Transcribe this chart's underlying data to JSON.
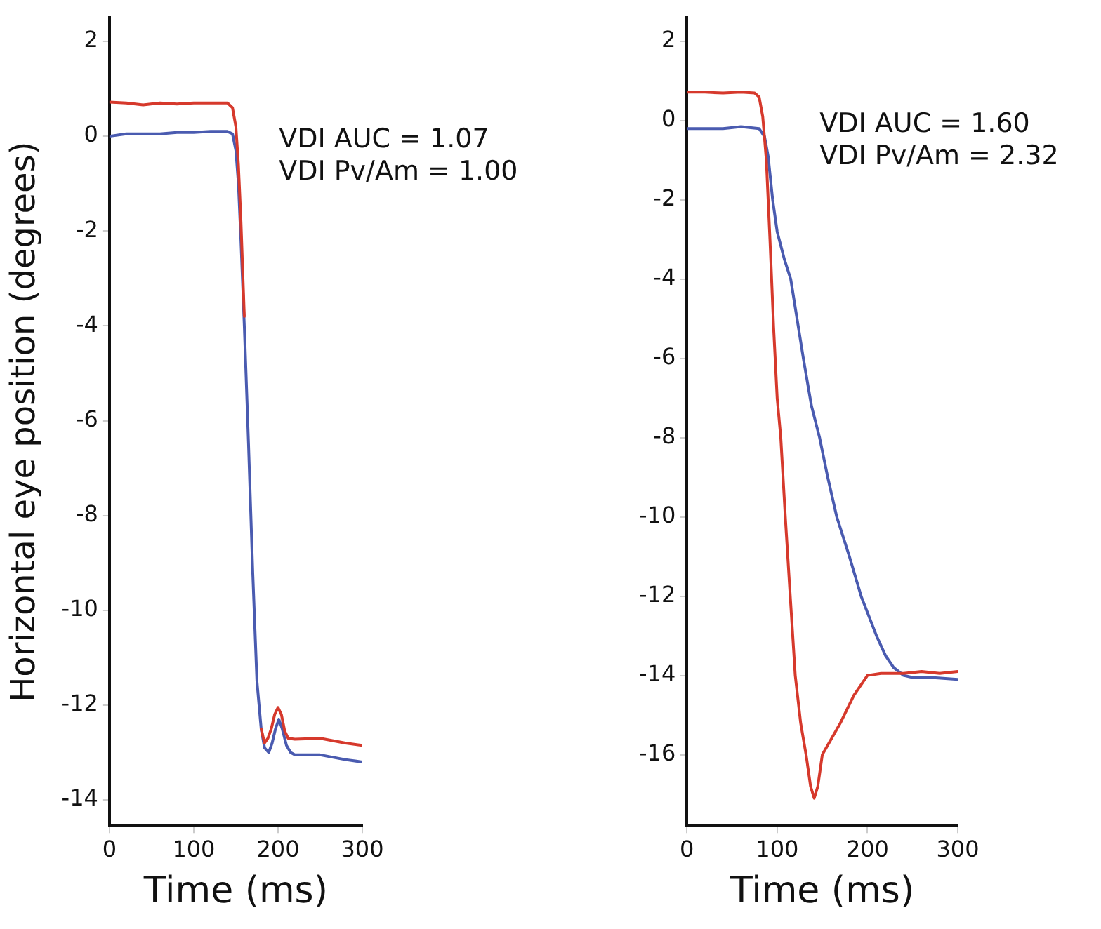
{
  "chart_data": [
    {
      "type": "line",
      "xlabel": "Time (ms)",
      "ylabel": "Horizontal eye position (degrees)",
      "annotations": [
        "VDI AUC = 1.07",
        "VDI Pv/Am = 1.00"
      ],
      "xlim": [
        0,
        300
      ],
      "xticks": [
        0,
        100,
        200,
        300
      ],
      "ylim": [
        -14.55,
        2.5
      ],
      "yticks": [
        2,
        0,
        -2,
        -4,
        -6,
        -8,
        -10,
        -12,
        -14
      ],
      "grid": false,
      "legend": false,
      "marker": "none",
      "line_style": "solid",
      "series": [
        {
          "color": "#d6392c",
          "x": [
            0,
            20,
            40,
            60,
            80,
            100,
            120,
            140,
            146,
            150,
            153,
            156,
            160,
            165,
            170,
            175,
            180,
            184,
            188,
            192,
            196,
            200,
            204,
            208,
            212,
            220,
            250,
            280,
            300
          ],
          "values": [
            0.72,
            0.7,
            0.66,
            0.7,
            0.68,
            0.7,
            0.7,
            0.7,
            0.6,
            0.2,
            -0.6,
            -1.8,
            -3.8,
            null,
            null,
            null,
            -12.5,
            -12.8,
            -12.7,
            -12.5,
            -12.2,
            -12.05,
            -12.2,
            -12.55,
            -12.7,
            -12.72,
            -12.7,
            -12.8,
            -12.85
          ]
        },
        {
          "color": "#4a5bb0",
          "x": [
            0,
            20,
            40,
            60,
            80,
            100,
            120,
            140,
            146,
            150,
            153,
            156,
            160,
            165,
            170,
            175,
            180,
            184,
            189,
            193,
            197,
            201,
            205,
            210,
            215,
            220,
            250,
            280,
            300
          ],
          "values": [
            0.0,
            0.05,
            0.05,
            0.05,
            0.08,
            0.08,
            0.1,
            0.1,
            0.05,
            -0.3,
            -1.0,
            -2.2,
            -4.0,
            -6.5,
            -9.2,
            -11.5,
            -12.5,
            -12.9,
            -13.0,
            -12.8,
            -12.5,
            -12.3,
            -12.5,
            -12.85,
            -13.0,
            -13.05,
            -13.05,
            -13.15,
            -13.2
          ]
        }
      ]
    },
    {
      "type": "line",
      "xlabel": "Time (ms)",
      "annotations": [
        "VDI AUC = 1.60",
        "VDI Pv/Am = 2.32"
      ],
      "xlim": [
        0,
        300
      ],
      "xticks": [
        0,
        100,
        200,
        300
      ],
      "ylim": [
        -17.8,
        2.6
      ],
      "yticks": [
        2,
        0,
        -2,
        -4,
        -6,
        -8,
        -10,
        -12,
        -14,
        -16
      ],
      "grid": false,
      "legend": false,
      "marker": "none",
      "line_style": "solid",
      "series": [
        {
          "color": "#d6392c",
          "x": [
            0,
            20,
            40,
            60,
            75,
            80,
            84,
            88,
            92,
            96,
            100,
            104,
            109,
            115,
            120,
            126,
            132,
            137,
            141,
            145,
            150,
            155,
            160,
            170,
            185,
            200,
            215,
            240,
            260,
            280,
            300
          ],
          "values": [
            0.72,
            0.72,
            0.7,
            0.72,
            0.7,
            0.6,
            0.1,
            -1.0,
            -3.0,
            -5.2,
            -7.0,
            -8.0,
            -10.0,
            -12.2,
            -14.0,
            -15.2,
            -16.0,
            -16.8,
            -17.1,
            -16.8,
            -16.0,
            -15.8,
            -15.6,
            -15.2,
            -14.5,
            -14.0,
            -13.95,
            -13.95,
            -13.9,
            -13.95,
            -13.9
          ]
        },
        {
          "color": "#4a5bb0",
          "x": [
            0,
            20,
            40,
            60,
            80,
            86,
            90,
            95,
            100,
            108,
            115,
            122,
            129,
            138,
            147,
            156,
            166,
            180,
            193,
            210,
            220,
            229,
            240,
            250,
            270,
            300
          ],
          "values": [
            -0.2,
            -0.2,
            -0.2,
            -0.15,
            -0.2,
            -0.4,
            -0.9,
            -2.0,
            -2.8,
            -3.5,
            -4.0,
            -5.0,
            -6.0,
            -7.2,
            -8.0,
            -9.0,
            -10.0,
            -11.0,
            -12.0,
            -13.0,
            -13.5,
            -13.8,
            -14.0,
            -14.05,
            -14.05,
            -14.1
          ]
        }
      ]
    }
  ]
}
